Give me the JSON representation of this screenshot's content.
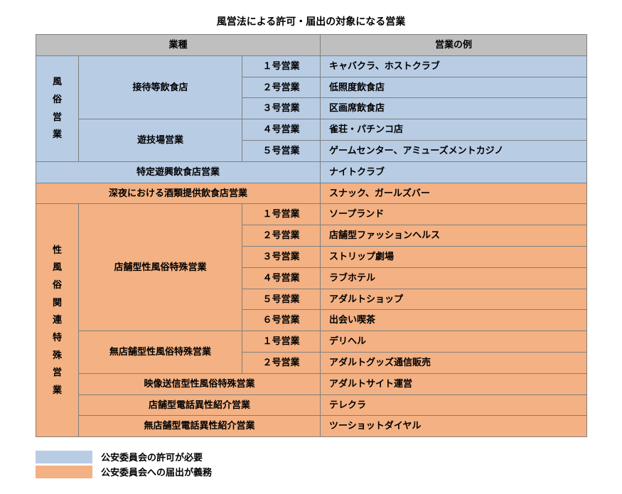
{
  "colors": {
    "header_bg": "#bfbfbf",
    "blue_bg": "#b8cce4",
    "orange_bg": "#f4b183",
    "border": "#808080",
    "text": "#000000",
    "page_bg": "#ffffff"
  },
  "title": "風営法による許可・届出の対象になる営業",
  "headers": {
    "col_category": "業種",
    "col_example": "営業の例"
  },
  "group1": {
    "vert_label": "風\n俗\n営\n業",
    "sub1": {
      "label": "接待等飲食店",
      "rows": [
        {
          "num": "１号営業",
          "ex": "キャバクラ、ホストクラブ"
        },
        {
          "num": "２号営業",
          "ex": "低照度飲食店"
        },
        {
          "num": "３号営業",
          "ex": "区画席飲食店"
        }
      ]
    },
    "sub2": {
      "label": "遊技場営業",
      "rows": [
        {
          "num": "４号営業",
          "ex": "雀荘・パチンコ店"
        },
        {
          "num": "５号営業",
          "ex": "ゲームセンター、アミューズメントカジノ"
        }
      ]
    },
    "sub3": {
      "label": "特定遊興飲食店営業",
      "ex": "ナイトクラブ"
    }
  },
  "mid": {
    "label": "深夜における酒類提供飲食店営業",
    "ex": "スナック、ガールズバー"
  },
  "group2": {
    "vert_label": "性\n風\n俗\n関\n連\n特\n殊\n営\n業",
    "sub1": {
      "label": "店舗型性風俗特殊営業",
      "rows": [
        {
          "num": "１号営業",
          "ex": "ソープランド"
        },
        {
          "num": "２号営業",
          "ex": "店舗型ファッションヘルス"
        },
        {
          "num": "３号営業",
          "ex": "ストリップ劇場"
        },
        {
          "num": "４号営業",
          "ex": "ラブホテル"
        },
        {
          "num": "５号営業",
          "ex": "アダルトショップ"
        },
        {
          "num": "６号営業",
          "ex": "出会い喫茶"
        }
      ]
    },
    "sub2": {
      "label": "無店舗型性風俗特殊営業",
      "rows": [
        {
          "num": "１号営業",
          "ex": "デリヘル"
        },
        {
          "num": "２号営業",
          "ex": "アダルトグッズ通信販売"
        }
      ]
    },
    "sub3": {
      "label": "映像送信型性風俗特殊営業",
      "ex": "アダルトサイト運営"
    },
    "sub4": {
      "label": "店舗型電話異性紹介営業",
      "ex": "テレクラ"
    },
    "sub5": {
      "label": "無店舗型電話異性紹介営業",
      "ex": "ツーショットダイヤル"
    }
  },
  "legend": {
    "blue": "公安委員会の許可が必要",
    "orange": "公安委員会への届出が義務"
  }
}
